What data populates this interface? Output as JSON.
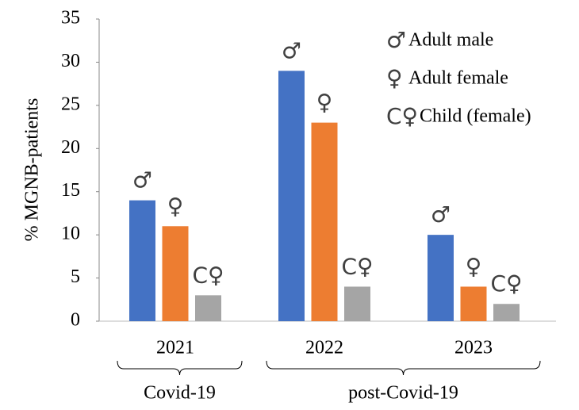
{
  "chart_data": {
    "type": "bar",
    "ylabel": "% MGNB-patients",
    "categories": [
      "2021",
      "2022",
      "2023"
    ],
    "series": [
      {
        "name": "Adult male",
        "symbol": "♂",
        "color": "#4472c4",
        "values": [
          14,
          29,
          10
        ]
      },
      {
        "name": "Adult female",
        "symbol": "♀",
        "color": "#ed7d31",
        "values": [
          11,
          23,
          4
        ]
      },
      {
        "name": "Child (female)",
        "symbol": "C♀",
        "color": "#a5a5a5",
        "values": [
          3,
          4,
          2
        ]
      }
    ],
    "groups": [
      {
        "label": "Covid-19",
        "categories": [
          "2021"
        ]
      },
      {
        "label": "post-Covid-19",
        "categories": [
          "2022",
          "2023"
        ]
      }
    ],
    "ylim": [
      0,
      35
    ],
    "yticks": [
      0,
      5,
      10,
      15,
      20,
      25,
      30,
      35
    ],
    "grid": false,
    "legend": "top-right"
  }
}
